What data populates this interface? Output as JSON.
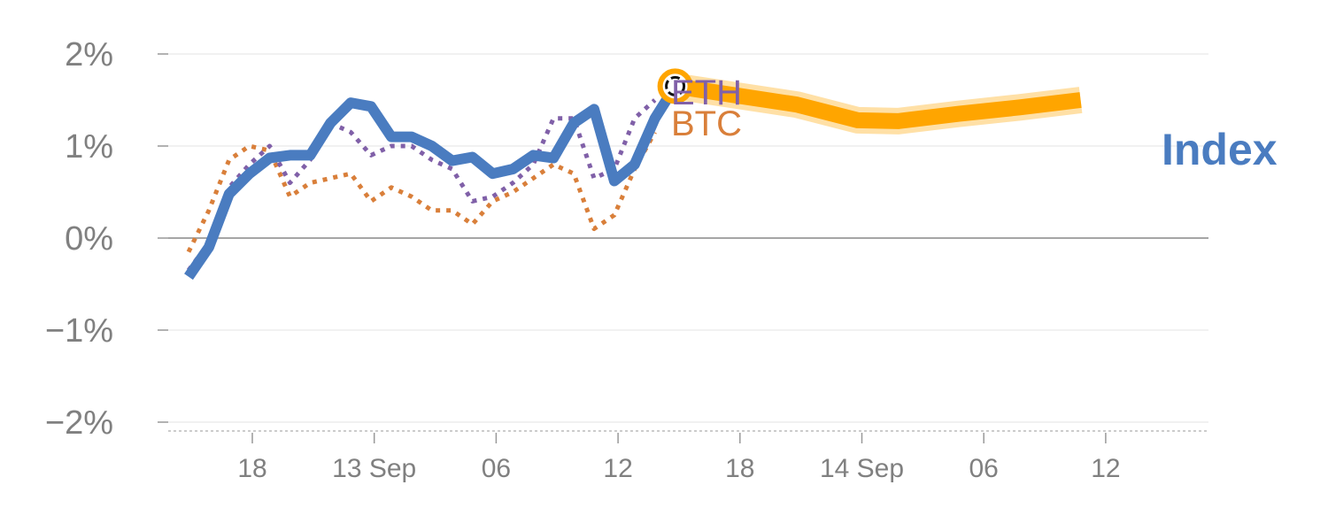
{
  "chart_data": {
    "type": "line",
    "yticks": [
      "2%",
      "1%",
      "0%",
      "−1%",
      "−2%"
    ],
    "ytick_values": [
      2,
      1,
      0,
      -1,
      -2
    ],
    "xticks": [
      "18",
      "13 Sep",
      "06",
      "12",
      "18",
      "14 Sep",
      "06",
      "12"
    ],
    "ylim": [
      -2.1,
      2.1
    ],
    "grid": true,
    "series": [
      {
        "name": "BTC",
        "style": "dotted",
        "color": "#d97f3a",
        "values": [
          -0.15,
          0.3,
          0.85,
          1.0,
          0.95,
          0.45,
          0.6,
          0.65,
          0.7,
          0.4,
          0.55,
          0.45,
          0.3,
          0.3,
          0.15,
          0.4,
          0.5,
          0.65,
          0.8,
          0.7,
          0.1,
          0.25,
          0.75,
          1.15
        ]
      },
      {
        "name": "ETH",
        "style": "dotted",
        "color": "#8060a8",
        "values": [
          -0.35,
          -0.05,
          0.55,
          0.8,
          1.0,
          0.6,
          0.85,
          1.25,
          1.15,
          0.9,
          1.0,
          1.0,
          0.85,
          0.75,
          0.4,
          0.45,
          0.6,
          0.8,
          1.3,
          1.3,
          0.65,
          0.75,
          1.3,
          1.5
        ]
      },
      {
        "name": "Index",
        "style": "solid",
        "color": "#4a7cc0",
        "values": [
          -0.42,
          -0.1,
          0.48,
          0.7,
          0.87,
          0.9,
          0.9,
          1.25,
          1.47,
          1.43,
          1.1,
          1.1,
          1.0,
          0.84,
          0.88,
          0.7,
          0.75,
          0.9,
          0.87,
          1.25,
          1.4,
          0.62,
          0.8,
          1.3,
          1.65
        ]
      }
    ],
    "forecast": {
      "color": "#ffa500",
      "values": [
        1.65,
        1.55,
        1.45,
        1.28,
        1.27,
        1.35,
        1.42,
        1.5
      ],
      "x": [
        0,
        3,
        6,
        9,
        11,
        14,
        17,
        20
      ]
    },
    "labels": {
      "eth": "ETH",
      "btc": "BTC",
      "index": "Index"
    }
  }
}
